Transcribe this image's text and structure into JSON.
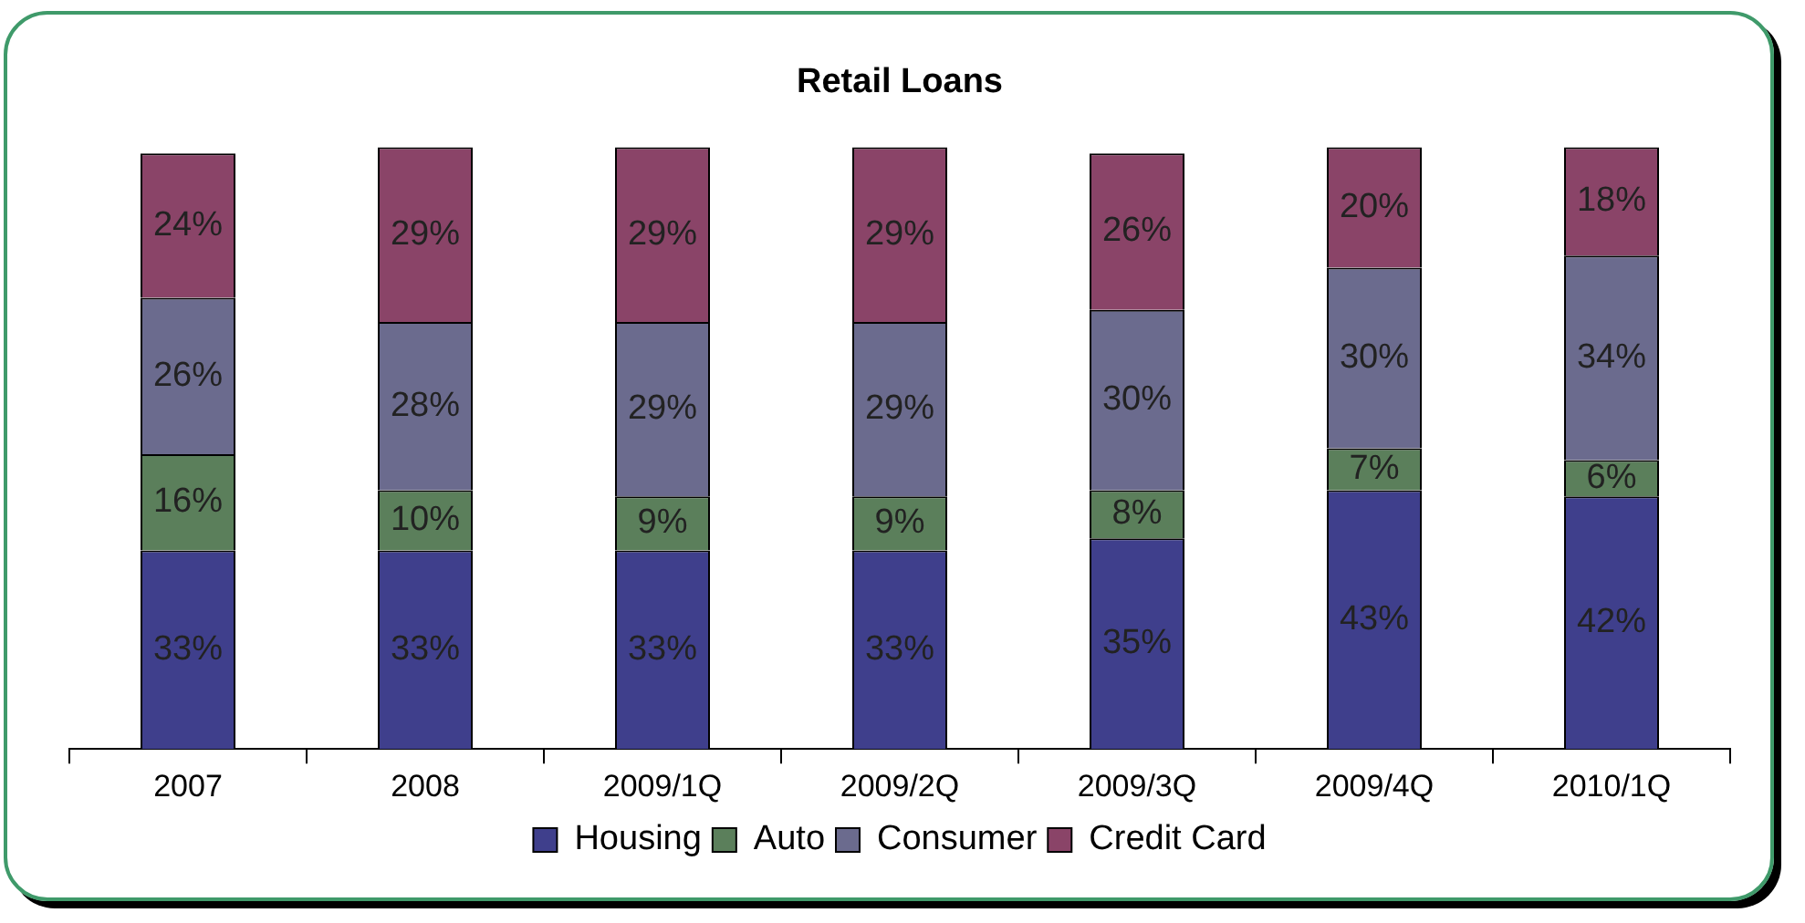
{
  "chart_data": {
    "type": "bar",
    "title": "Retail Loans",
    "stacked": true,
    "categories": [
      "2007",
      "2008",
      "2009/1Q",
      "2009/2Q",
      "2009/3Q",
      "2009/4Q",
      "2010/1Q"
    ],
    "ylim": [
      0,
      100
    ],
    "tick_labels": "x",
    "legend": "bottom",
    "grid": false,
    "series": [
      {
        "name": "Housing",
        "color": "#3f3f8c",
        "values": [
          33,
          33,
          33,
          33,
          35,
          43,
          42
        ],
        "value_labels": [
          "33%",
          "33%",
          "33%",
          "33%",
          "35%",
          "43%",
          "42%"
        ]
      },
      {
        "name": "Auto",
        "color": "#5b7f5b",
        "values": [
          16,
          10,
          9,
          9,
          8,
          7,
          6
        ],
        "value_labels": [
          "16%",
          "10%",
          "9%",
          "9%",
          "8%",
          "7%",
          "6%"
        ]
      },
      {
        "name": "Consumer",
        "color": "#6b6b8e",
        "values": [
          26,
          28,
          29,
          29,
          30,
          30,
          34
        ],
        "value_labels": [
          "26%",
          "28%",
          "29%",
          "29%",
          "30%",
          "30%",
          "34%"
        ]
      },
      {
        "name": "Credit Card",
        "color": "#8a4468",
        "values": [
          24,
          29,
          29,
          29,
          26,
          20,
          18
        ],
        "value_labels": [
          "24%",
          "29%",
          "29%",
          "29%",
          "26%",
          "20%",
          "18%"
        ]
      }
    ]
  }
}
